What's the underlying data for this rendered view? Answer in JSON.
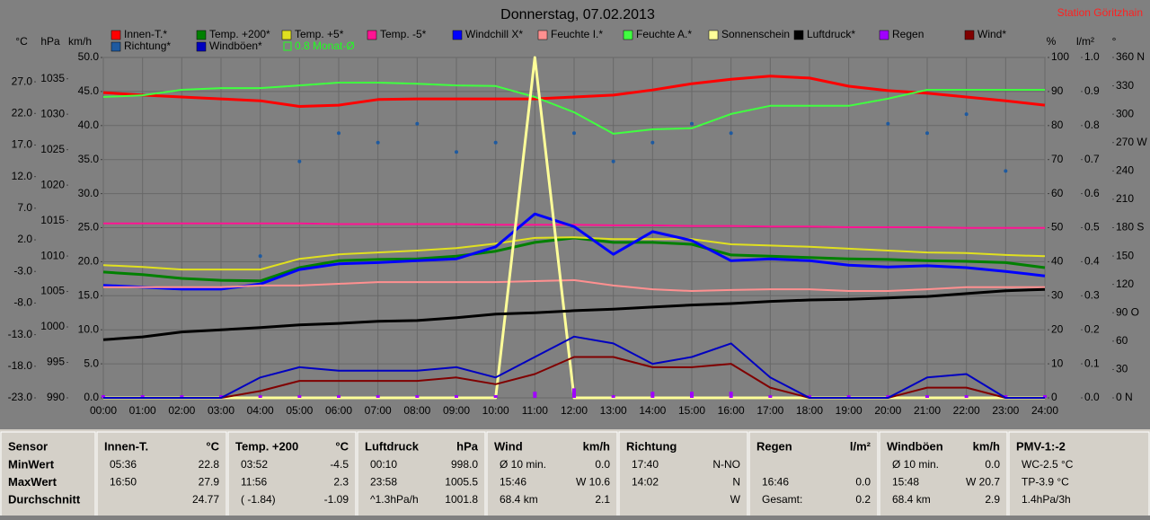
{
  "chart_data": {
    "type": "line",
    "title": "Donnerstag, 07.02.2013",
    "station": "Station Göritzhain",
    "xlim": [
      0,
      24
    ],
    "xticks": [
      {
        "value": 0,
        "label": "00:00"
      },
      {
        "value": 1,
        "label": "01:00"
      },
      {
        "value": 2,
        "label": "02:00"
      },
      {
        "value": 3,
        "label": "03:00"
      },
      {
        "value": 4,
        "label": "04:00"
      },
      {
        "value": 5,
        "label": "05:00"
      },
      {
        "value": 6,
        "label": "06:00"
      },
      {
        "value": 7,
        "label": "07:00"
      },
      {
        "value": 8,
        "label": "08:00"
      },
      {
        "value": 9,
        "label": "09:00"
      },
      {
        "value": 10,
        "label": "10:00"
      },
      {
        "value": 11,
        "label": "11:00"
      },
      {
        "value": 12,
        "label": "12:00"
      },
      {
        "value": 13,
        "label": "13:00"
      },
      {
        "value": 14,
        "label": "14:00"
      },
      {
        "value": 15,
        "label": "15:00"
      },
      {
        "value": 16,
        "label": "16:00"
      },
      {
        "value": 17,
        "label": "17:00"
      },
      {
        "value": 18,
        "label": "18:00"
      },
      {
        "value": 19,
        "label": "19:00"
      },
      {
        "value": 20,
        "label": "20:00"
      },
      {
        "value": 21,
        "label": "21:00"
      },
      {
        "value": 22,
        "label": "22:00"
      },
      {
        "value": 23,
        "label": "23:00"
      },
      {
        "value": 24,
        "label": "24:00"
      }
    ],
    "x": [
      0,
      1,
      2,
      3,
      4,
      5,
      6,
      7,
      8,
      9,
      10,
      11,
      12,
      13,
      14,
      15,
      16,
      17,
      18,
      19,
      20,
      21,
      22,
      23,
      24
    ],
    "grid": true,
    "axes": {
      "y": {
        "label": "°C",
        "lim": [
          -23,
          30.85
        ],
        "ticks": [
          {
            "value": 27,
            "label": "27.0"
          },
          {
            "value": 22,
            "label": "22.0"
          },
          {
            "value": 17,
            "label": "17.0"
          },
          {
            "value": 12,
            "label": "12.0"
          },
          {
            "value": 7,
            "label": "7.0"
          },
          {
            "value": 2,
            "label": "2.0"
          },
          {
            "value": -3,
            "label": "-3.0"
          },
          {
            "value": -8,
            "label": "-8.0"
          },
          {
            "value": -13,
            "label": "-13.0"
          },
          {
            "value": -18,
            "label": "-18.0"
          },
          {
            "value": -23,
            "label": "-23.0"
          }
        ]
      },
      "y2": {
        "label": "hPa",
        "lim": [
          990,
          1038
        ],
        "ticks": [
          1035,
          1030,
          1025,
          1020,
          1015,
          1010,
          1005,
          1000,
          995,
          990
        ]
      },
      "y3": {
        "label": "km/h",
        "lim": [
          0,
          50
        ],
        "ticks": [
          {
            "value": 50,
            "label": "50.0"
          },
          {
            "value": 45,
            "label": "45.0"
          },
          {
            "value": 40,
            "label": "40.0"
          },
          {
            "value": 35,
            "label": "35.0"
          },
          {
            "value": 30,
            "label": "30.0"
          },
          {
            "value": 25,
            "label": "25.0"
          },
          {
            "value": 20,
            "label": "20.0"
          },
          {
            "value": 15,
            "label": "15.0"
          },
          {
            "value": 10,
            "label": "10.0"
          },
          {
            "value": 5,
            "label": "5.0"
          },
          {
            "value": 0,
            "label": "0.0"
          }
        ]
      },
      "y4": {
        "label": "%",
        "lim": [
          0,
          100
        ],
        "ticks": [
          100,
          90,
          80,
          70,
          60,
          50,
          40,
          30,
          20,
          10,
          0
        ]
      },
      "y5": {
        "label": "l/m²",
        "lim": [
          0,
          1
        ],
        "ticks": [
          {
            "value": 1,
            "label": "1.0"
          },
          0.9,
          0.8,
          0.7,
          0.6,
          0.5,
          0.4,
          0.3,
          0.2,
          0.1,
          {
            "value": 0,
            "label": "0.0"
          }
        ]
      },
      "y6": {
        "label": "°",
        "lim": [
          0,
          360
        ],
        "ticks": [
          {
            "value": 360,
            "label": "360 N"
          },
          330,
          300,
          {
            "value": 270,
            "label": "270 W"
          },
          240,
          210,
          {
            "value": 180,
            "label": "180 S"
          },
          150,
          120,
          {
            "value": 90,
            "label": "90 O"
          },
          60,
          30,
          {
            "value": 0,
            "label": "0 N"
          }
        ]
      }
    },
    "series": [
      {
        "name": "Innen-T.*",
        "color": "#ff0000",
        "axis": "y",
        "mark": "line",
        "width": 3,
        "values": [
          25.3,
          24.9,
          24.6,
          24.3,
          24.0,
          23.1,
          23.3,
          24.2,
          24.3,
          24.3,
          24.3,
          24.3,
          24.6,
          24.9,
          25.7,
          26.7,
          27.4,
          27.9,
          27.6,
          26.3,
          25.6,
          25.2,
          24.6,
          24.0,
          23.3
        ]
      },
      {
        "name": "Temp. +200*",
        "color": "#008000",
        "axis": "y",
        "mark": "line",
        "width": 3,
        "values": [
          -3.1,
          -3.5,
          -4.1,
          -4.4,
          -4.5,
          -2.4,
          -1.3,
          -1.1,
          -1.0,
          -0.6,
          0.2,
          1.6,
          2.3,
          1.6,
          1.6,
          1.3,
          -0.4,
          -0.6,
          -0.8,
          -1.0,
          -1.1,
          -1.3,
          -1.4,
          -1.6,
          -2.4
        ]
      },
      {
        "name": "Temp. +5*",
        "color": "#e0e020",
        "axis": "y",
        "mark": "line",
        "width": 2,
        "values": [
          -2.0,
          -2.3,
          -2.7,
          -2.7,
          -2.7,
          -1.0,
          -0.3,
          0.0,
          0.3,
          0.7,
          1.4,
          2.3,
          2.4,
          2.1,
          2.1,
          2.1,
          1.3,
          1.1,
          0.9,
          0.6,
          0.3,
          0.0,
          -0.1,
          -0.4,
          -0.6
        ]
      },
      {
        "name": "Temp. -5*",
        "color": "#ff1493",
        "axis": "y",
        "mark": "line",
        "width": 2,
        "values": [
          4.6,
          4.6,
          4.6,
          4.6,
          4.6,
          4.6,
          4.5,
          4.5,
          4.5,
          4.5,
          4.4,
          4.4,
          4.4,
          4.3,
          4.3,
          4.2,
          4.2,
          4.1,
          4.1,
          4.0,
          4.0,
          4.0,
          3.9,
          3.9,
          3.9
        ]
      },
      {
        "name": "Windchill X*",
        "color": "#0000ff",
        "axis": "y",
        "mark": "line",
        "width": 3,
        "values": [
          -5.2,
          -5.5,
          -5.8,
          -5.8,
          -5.0,
          -2.7,
          -1.8,
          -1.6,
          -1.3,
          -1.0,
          0.9,
          6.1,
          4.1,
          -0.3,
          3.3,
          1.9,
          -1.3,
          -1.0,
          -1.3,
          -2.0,
          -2.3,
          -2.1,
          -2.4,
          -3.0,
          -3.7
        ]
      },
      {
        "name": "Feuchte I.*",
        "color": "#ff9090",
        "axis": "y4",
        "mark": "line",
        "width": 2,
        "values": [
          32.5,
          32.5,
          32.5,
          32.5,
          33.0,
          33.0,
          33.5,
          34.0,
          34.0,
          34.0,
          34.0,
          34.3,
          34.6,
          33.0,
          31.9,
          31.4,
          31.7,
          31.9,
          31.9,
          31.4,
          31.4,
          31.9,
          32.5,
          32.5,
          32.5
        ]
      },
      {
        "name": "Feuchte A.*",
        "color": "#40ff40",
        "axis": "y4",
        "mark": "line",
        "width": 2,
        "values": [
          88.4,
          88.9,
          90.5,
          91.0,
          91.0,
          91.8,
          92.6,
          92.6,
          92.3,
          91.8,
          91.6,
          88.4,
          83.9,
          77.6,
          78.9,
          79.2,
          83.4,
          85.8,
          85.8,
          85.8,
          87.9,
          90.5,
          90.5,
          90.5,
          90.5
        ]
      },
      {
        "name": "Sonnenschein",
        "color": "#ffff99",
        "axis": "y4",
        "mark": "line",
        "width": 3,
        "values": [
          0,
          0,
          0,
          0,
          0,
          0,
          0,
          0,
          0,
          0,
          0,
          100,
          0,
          0,
          0,
          0,
          0,
          0,
          0,
          0,
          0,
          0,
          0,
          0,
          0
        ]
      },
      {
        "name": "Luftdruck*",
        "color": "#000000",
        "axis": "y2",
        "mark": "line",
        "width": 3,
        "values": [
          998.2,
          998.6,
          999.3,
          999.6,
          999.9,
          1000.3,
          1000.5,
          1000.8,
          1000.9,
          1001.3,
          1001.8,
          1002.0,
          1002.3,
          1002.5,
          1002.8,
          1003.1,
          1003.3,
          1003.6,
          1003.8,
          1003.9,
          1004.1,
          1004.3,
          1004.7,
          1005.1,
          1005.3
        ]
      },
      {
        "name": "Regen",
        "color": "#a000ff",
        "axis": "y5",
        "mark": "bars",
        "width": 4,
        "values": [
          0,
          0,
          0,
          0,
          0,
          0,
          0,
          0,
          0,
          0,
          0,
          0.01,
          0.02,
          0,
          0.01,
          0.01,
          0.01,
          0,
          0,
          0,
          0,
          0,
          0,
          0,
          0
        ]
      },
      {
        "name": "Wind*",
        "color": "#800000",
        "axis": "y3",
        "mark": "line",
        "width": 2,
        "values": [
          0,
          0,
          0,
          0,
          1,
          2.5,
          2.5,
          2.5,
          2.5,
          3,
          2,
          3.5,
          6,
          6,
          4.5,
          4.5,
          5,
          1.5,
          0,
          0,
          0,
          1.5,
          1.5,
          0,
          0
        ]
      },
      {
        "name": "Richtung*",
        "color": "#1e5aa0",
        "axis": "y6",
        "mark": "dots",
        "width": 2,
        "values": [
          null,
          null,
          null,
          null,
          150,
          250,
          280,
          270,
          290,
          260,
          270,
          null,
          280,
          250,
          270,
          290,
          280,
          null,
          null,
          null,
          290,
          280,
          300,
          240,
          null
        ]
      },
      {
        "name": "Windböen*",
        "color": "#0000c0",
        "axis": "y3",
        "mark": "line",
        "width": 2,
        "values": [
          0,
          0,
          0,
          0,
          3,
          4.5,
          4,
          4,
          4,
          4.5,
          3,
          6,
          9,
          8,
          5,
          6,
          8,
          3,
          0,
          0,
          0,
          3,
          3.5,
          0,
          0
        ]
      }
    ],
    "note": "0.8 Monat-Ø"
  },
  "table": {
    "panels": [
      {
        "title": "Sensor",
        "rows": [
          {
            "left": "MinWert"
          },
          {
            "left": "MaxWert"
          },
          {
            "left": "Durchschnitt"
          }
        ]
      },
      {
        "title": "Innen-T.",
        "unit": "°C",
        "rows": [
          {
            "left": "05:36",
            "right": "22.8"
          },
          {
            "left": "16:50",
            "right": "27.9"
          },
          {
            "right": "24.77"
          }
        ]
      },
      {
        "title": "Temp. +200",
        "unit": "°C",
        "rows": [
          {
            "left": "03:52",
            "right": "-4.5"
          },
          {
            "left": "11:56",
            "right": "2.3"
          },
          {
            "left": "( -1.84)",
            "right": "-1.09"
          }
        ]
      },
      {
        "title": "Luftdruck",
        "unit": "hPa",
        "rows": [
          {
            "left": "00:10",
            "right": "998.0"
          },
          {
            "left": "23:58",
            "right": "1005.5"
          },
          {
            "left": "^1.3hPa/h",
            "right": "1001.8"
          }
        ]
      },
      {
        "title": "Wind",
        "unit": "km/h",
        "rows": [
          {
            "left": "Ø 10 min.",
            "right": "0.0"
          },
          {
            "left": "15:46",
            "right": "W 10.6"
          },
          {
            "left": "68.4 km",
            "right": "2.1"
          }
        ]
      },
      {
        "title": "Richtung",
        "rows": [
          {
            "left": "17:40",
            "right": "N-NO"
          },
          {
            "left": "14:02",
            "right": "N"
          },
          {
            "right": "W"
          }
        ]
      },
      {
        "title": "Regen",
        "unit": "l/m²",
        "rows": [
          {},
          {
            "left": "16:46",
            "right": "0.0"
          },
          {
            "left": "Gesamt:",
            "right": "0.2"
          }
        ]
      },
      {
        "title": "Windböen",
        "unit": "km/h",
        "rows": [
          {
            "left": "Ø 10 min.",
            "right": "0.0"
          },
          {
            "left": "15:48",
            "right": "W 20.7"
          },
          {
            "left": "68.4 km",
            "right": "2.9"
          }
        ]
      },
      {
        "title": "PMV-1:-2",
        "rows": [
          {
            "left": "WC-2.5 °C"
          },
          {
            "left": "TP-3.9 °C"
          },
          {
            "left": "1.4hPa/3h"
          }
        ]
      }
    ]
  }
}
